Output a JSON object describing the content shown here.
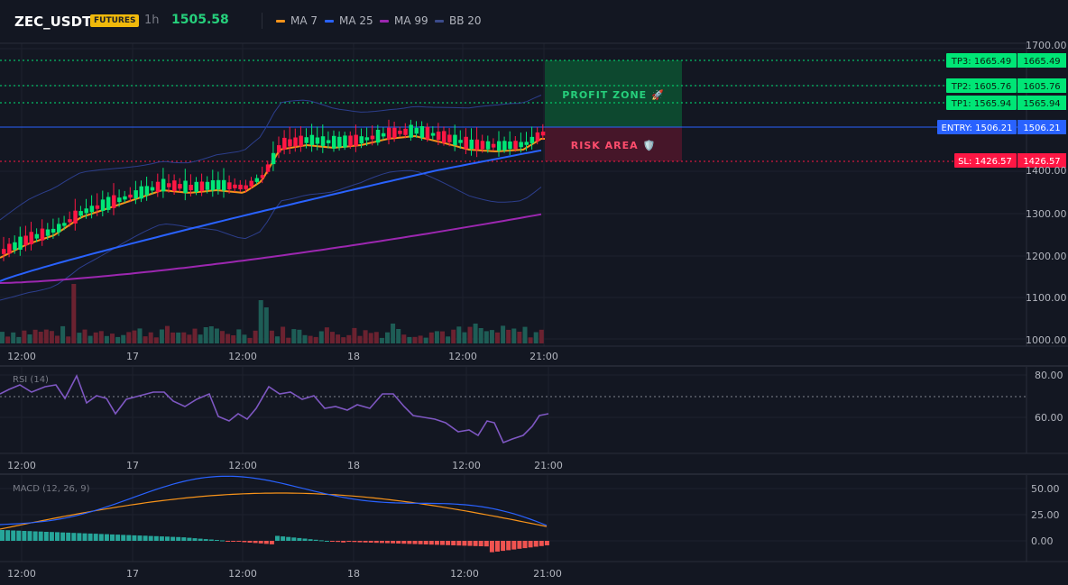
{
  "header": {
    "symbol": "ZEC_USDT",
    "badge": "FUTURES",
    "interval": "1h",
    "price": "1505.58",
    "legend": [
      {
        "label": "MA 7",
        "color": "#f7931a"
      },
      {
        "label": "MA 25",
        "color": "#2962ff"
      },
      {
        "label": "MA 99",
        "color": "#9c27b0"
      },
      {
        "label": "BB 20",
        "color": "#3b4b8c"
      }
    ]
  },
  "main_pane": {
    "price_ticks": [
      "1700.00",
      "1600.00",
      "1500.00",
      "1400.00",
      "1300.00",
      "1200.00",
      "1100.00",
      "1000.00"
    ],
    "time_ticks": [
      "12:00",
      "17",
      "12:00",
      "18",
      "12:00",
      "21:00"
    ],
    "zones": {
      "profit": "PROFIT ZONE 🚀",
      "risk": "RISK AREA 🛡️"
    },
    "levels": [
      {
        "label": "TP3: 1665.49",
        "axis": "1665.49",
        "color": "#00e676",
        "text_color": "#0b1f12"
      },
      {
        "label": "TP2: 1605.76",
        "axis": "1605.76",
        "color": "#00e676",
        "text_color": "#0b1f12"
      },
      {
        "label": "TP1: 1565.94",
        "axis": "1565.94",
        "color": "#00e676",
        "text_color": "#0b1f12"
      },
      {
        "label": "ENTRY: 1506.21",
        "axis": "1506.21",
        "color": "#2962ff",
        "text_color": "#ffffff"
      },
      {
        "label": "SL: 1426.57",
        "axis": "1426.57",
        "color": "#ff1744",
        "text_color": "#ffffff"
      }
    ]
  },
  "rsi_pane": {
    "title": "RSI (14)",
    "ticks": [
      "80.00",
      "60.00"
    ],
    "time_ticks": [
      "12:00",
      "17",
      "12:00",
      "18",
      "12:00",
      "21:00"
    ]
  },
  "macd_pane": {
    "title": "MACD (12, 26, 9)",
    "ticks": [
      "50.00",
      "25.00",
      "0.00"
    ],
    "time_ticks": [
      "12:00",
      "17",
      "12:00",
      "18",
      "12:00",
      "21:00"
    ]
  },
  "colors": {
    "up": "#26a69a",
    "up_candle": "#00e676",
    "down": "#ff1744",
    "ma7": "#f7931a",
    "ma25": "#2962ff",
    "ma99": "#9c27b0",
    "bb": "#2c3e8c",
    "rsi": "#7e57c2",
    "macd": "#2962ff",
    "signal": "#f7931a"
  }
}
